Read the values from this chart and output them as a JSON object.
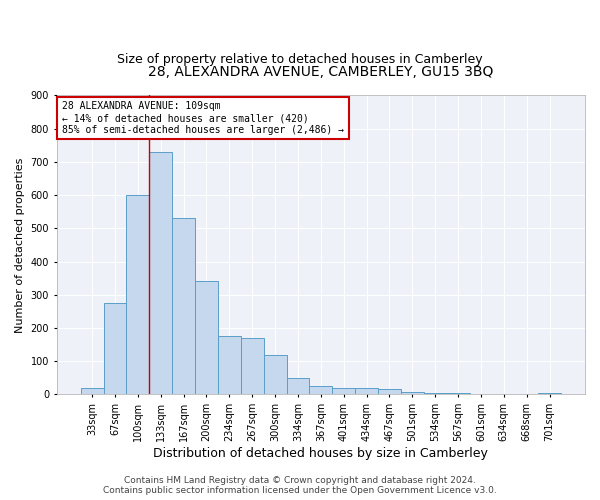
{
  "title1": "28, ALEXANDRA AVENUE, CAMBERLEY, GU15 3BQ",
  "title2": "Size of property relative to detached houses in Camberley",
  "xlabel": "Distribution of detached houses by size in Camberley",
  "ylabel": "Number of detached properties",
  "categories": [
    "33sqm",
    "67sqm",
    "100sqm",
    "133sqm",
    "167sqm",
    "200sqm",
    "234sqm",
    "267sqm",
    "300sqm",
    "334sqm",
    "367sqm",
    "401sqm",
    "434sqm",
    "467sqm",
    "501sqm",
    "534sqm",
    "567sqm",
    "601sqm",
    "634sqm",
    "668sqm",
    "701sqm"
  ],
  "values": [
    20,
    275,
    600,
    730,
    530,
    340,
    175,
    170,
    120,
    50,
    25,
    20,
    20,
    15,
    8,
    5,
    5,
    2,
    2,
    0,
    3
  ],
  "bar_color": "#c5d8ed",
  "bar_edge_color": "#5a9ec8",
  "vline_color": "#cc0000",
  "vline_xindex": 2.5,
  "annotation_text": "28 ALEXANDRA AVENUE: 109sqm\n← 14% of detached houses are smaller (420)\n85% of semi-detached houses are larger (2,486) →",
  "annotation_box_color": "#ffffff",
  "annotation_box_edge": "#cc0000",
  "ylim": [
    0,
    900
  ],
  "yticks": [
    0,
    100,
    200,
    300,
    400,
    500,
    600,
    700,
    800,
    900
  ],
  "footer1": "Contains HM Land Registry data © Crown copyright and database right 2024.",
  "footer2": "Contains public sector information licensed under the Open Government Licence v3.0.",
  "bg_color": "#eef2f8",
  "grid_color": "#ffffff",
  "title_fontsize": 10,
  "subtitle_fontsize": 9,
  "xlabel_fontsize": 9,
  "ylabel_fontsize": 8,
  "tick_fontsize": 7,
  "annot_fontsize": 7,
  "footer_fontsize": 6.5
}
